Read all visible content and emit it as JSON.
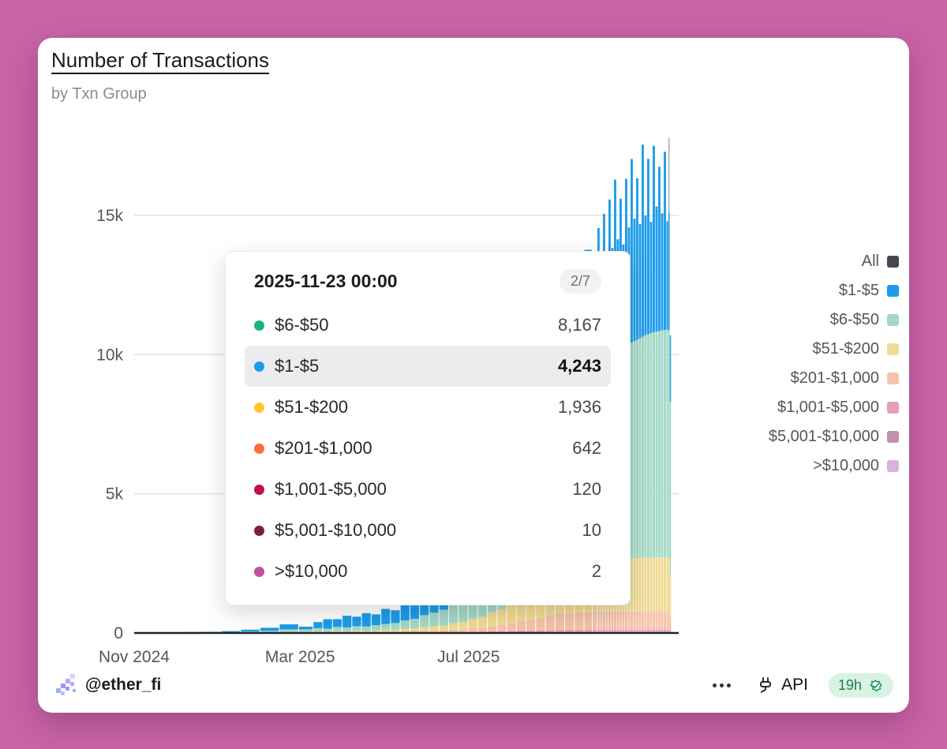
{
  "card": {
    "title": "Number of Transactions",
    "subtitle": "by Txn Group"
  },
  "tooltip": {
    "date": "2025-11-23 00:00",
    "pager": "2/7",
    "highlight_index": 1,
    "rows": [
      {
        "label": "$6-$50",
        "value": "8,167",
        "color": "#17b387"
      },
      {
        "label": "$1-$5",
        "value": "4,243",
        "color": "#1c9ceb"
      },
      {
        "label": "$51-$200",
        "value": "1,936",
        "color": "#ffc233"
      },
      {
        "label": "$201-$1,000",
        "value": "642",
        "color": "#ff6b3b"
      },
      {
        "label": "$1,001-$5,000",
        "value": "120",
        "color": "#c30e52"
      },
      {
        "label": "$5,001-$10,000",
        "value": "10",
        "color": "#7a1e40"
      },
      {
        "label": ">$10,000",
        "value": "2",
        "color": "#bf4fa4"
      }
    ]
  },
  "legend": {
    "items": [
      {
        "label": "All",
        "color": "#46464e"
      },
      {
        "label": "$1-$5",
        "color": "#1c9ceb"
      },
      {
        "label": "$6-$50",
        "color": "#a3d9c6"
      },
      {
        "label": "$51-$200",
        "color": "#f0db92"
      },
      {
        "label": "$201-$1,000",
        "color": "#f6c2a9"
      },
      {
        "label": "$1,001-$5,000",
        "color": "#e79fb4"
      },
      {
        "label": "$5,001-$10,000",
        "color": "#c48fac"
      },
      {
        "label": ">$10,000",
        "color": "#d8b2dc"
      }
    ]
  },
  "footer": {
    "handle": "@ether_fi",
    "api_label": "API",
    "refresh": "19h"
  },
  "chart_data": {
    "type": "bar",
    "stacked": true,
    "title": "Number of Transactions by Txn Group",
    "xlabel": "",
    "ylabel": "",
    "grid": true,
    "legend_position": "right",
    "x_range": [
      "2024-11-01",
      "2025-11-30"
    ],
    "ylim": [
      0,
      17800
    ],
    "y_ticks": [
      {
        "v": 0,
        "label": "0"
      },
      {
        "v": 5000,
        "label": "5k"
      },
      {
        "v": 10000,
        "label": "10k"
      },
      {
        "v": 15000,
        "label": "15k"
      }
    ],
    "x_ticks": [
      {
        "d": "2024-11-01",
        "label": "Nov 2024"
      },
      {
        "d": "2025-03-01",
        "label": "Mar 2025"
      },
      {
        "d": "2025-07-01",
        "label": "Jul 2025"
      }
    ],
    "hover_date": "2025-11-23",
    "dates": [
      "2024-11-01",
      "2024-11-15",
      "2024-11-29",
      "2024-12-13",
      "2024-12-27",
      "2025-01-10",
      "2025-01-24",
      "2025-02-07",
      "2025-02-21",
      "2025-03-07",
      "2025-03-14",
      "2025-03-21",
      "2025-03-28",
      "2025-04-04",
      "2025-04-11",
      "2025-04-18",
      "2025-04-25",
      "2025-05-02",
      "2025-05-09",
      "2025-05-16",
      "2025-05-23",
      "2025-05-30",
      "2025-06-06",
      "2025-06-13",
      "2025-06-20",
      "2025-06-27",
      "2025-07-04",
      "2025-07-11",
      "2025-07-18",
      "2025-07-25",
      "2025-08-01",
      "2025-08-08",
      "2025-08-15",
      "2025-08-22",
      "2025-08-29",
      "2025-09-05",
      "2025-09-12",
      "2025-09-19",
      "2025-09-26",
      "2025-10-01",
      "2025-10-03",
      "2025-10-05",
      "2025-10-07",
      "2025-10-09",
      "2025-10-11",
      "2025-10-13",
      "2025-10-15",
      "2025-10-17",
      "2025-10-19",
      "2025-10-21",
      "2025-10-23",
      "2025-10-25",
      "2025-10-27",
      "2025-10-29",
      "2025-10-31",
      "2025-11-02",
      "2025-11-04",
      "2025-11-06",
      "2025-11-08",
      "2025-11-10",
      "2025-11-12",
      "2025-11-14",
      "2025-11-16",
      "2025-11-18",
      "2025-11-20",
      "2025-11-22",
      "2025-11-23",
      "2025-11-24"
    ],
    "series": [
      {
        "name": "$1-$5",
        "color": "#1c9ceb",
        "values": [
          5,
          10,
          15,
          20,
          25,
          40,
          70,
          110,
          180,
          100,
          220,
          340,
          280,
          420,
          340,
          480,
          390,
          540,
          460,
          600,
          560,
          680,
          780,
          900,
          1000,
          960,
          1080,
          1250,
          1400,
          1350,
          1500,
          1750,
          1700,
          1950,
          2200,
          2500,
          2450,
          3300,
          4200,
          3200,
          4800,
          3400,
          5200,
          3600,
          5600,
          3800,
          6200,
          4000,
          5400,
          3700,
          6000,
          4200,
          6600,
          4400,
          5800,
          4100,
          6900,
          4300,
          6300,
          4000,
          6700,
          4500,
          5900,
          4200,
          6400,
          3900,
          4243,
          2400
        ]
      },
      {
        "name": "$6-$50",
        "color": "#a3d9c6",
        "values": [
          3,
          6,
          8,
          10,
          12,
          20,
          35,
          55,
          90,
          90,
          120,
          110,
          150,
          140,
          170,
          160,
          190,
          220,
          240,
          300,
          340,
          430,
          490,
          560,
          730,
          830,
          1080,
          1230,
          1600,
          1820,
          2350,
          2670,
          3030,
          3440,
          4420,
          5670,
          6100,
          6800,
          7000,
          7100,
          7150,
          7200,
          7250,
          7300,
          7350,
          7400,
          7450,
          7500,
          7550,
          7600,
          7650,
          7700,
          7750,
          7800,
          7850,
          7900,
          7950,
          8000,
          8030,
          8060,
          8090,
          8110,
          8130,
          8150,
          8160,
          8165,
          8167,
          6200
        ]
      },
      {
        "name": "$51-$200",
        "color": "#f0db92",
        "values": [
          0,
          1,
          2,
          3,
          4,
          6,
          10,
          16,
          28,
          25,
          35,
          30,
          45,
          40,
          50,
          48,
          58,
          70,
          78,
          98,
          110,
          140,
          158,
          180,
          234,
          266,
          340,
          390,
          500,
          570,
          730,
          830,
          940,
          1060,
          1350,
          1550,
          1650,
          1780,
          1820,
          1840,
          1845,
          1850,
          1855,
          1860,
          1865,
          1870,
          1875,
          1880,
          1885,
          1890,
          1895,
          1900,
          1905,
          1908,
          1910,
          1913,
          1915,
          1918,
          1920,
          1923,
          1925,
          1928,
          1930,
          1933,
          1935,
          1936,
          1936,
          1500
        ]
      },
      {
        "name": "$201-$1,000",
        "color": "#f6c2a9",
        "values": [
          0,
          0,
          0,
          1,
          1,
          2,
          4,
          6,
          10,
          10,
          14,
          12,
          18,
          16,
          20,
          19,
          24,
          28,
          31,
          39,
          44,
          56,
          63,
          72,
          92,
          105,
          135,
          153,
          197,
          224,
          288,
          327,
          371,
          420,
          540,
          590,
          600,
          615,
          620,
          622,
          624,
          625,
          627,
          628,
          630,
          631,
          633,
          634,
          636,
          637,
          639,
          640,
          641,
          642,
          644,
          645,
          646,
          648,
          649,
          650,
          651,
          652,
          653,
          654,
          655,
          656,
          642,
          500
        ]
      },
      {
        "name": "$1,001-$5,000",
        "color": "#e79fb4",
        "values": [
          0,
          0,
          0,
          0,
          0,
          0,
          1,
          1,
          2,
          2,
          3,
          3,
          4,
          4,
          5,
          5,
          6,
          7,
          8,
          10,
          11,
          14,
          16,
          18,
          23,
          26,
          34,
          38,
          49,
          55,
          70,
          79,
          85,
          90,
          95,
          100,
          105,
          110,
          114,
          115,
          115,
          116,
          116,
          117,
          117,
          118,
          118,
          119,
          119,
          120,
          120,
          120,
          120,
          121,
          121,
          121,
          122,
          122,
          122,
          123,
          123,
          123,
          124,
          124,
          124,
          125,
          120,
          90
        ]
      },
      {
        "name": "$5,001-$10,000",
        "color": "#c48fac",
        "values": [
          0,
          0,
          0,
          0,
          0,
          0,
          0,
          0,
          0,
          0,
          0,
          0,
          0,
          0,
          0,
          0,
          0,
          0,
          0,
          1,
          1,
          1,
          1,
          1,
          2,
          2,
          3,
          3,
          4,
          4,
          5,
          6,
          6,
          7,
          8,
          9,
          9,
          10,
          10,
          10,
          10,
          10,
          10,
          10,
          10,
          10,
          10,
          10,
          10,
          10,
          10,
          10,
          10,
          10,
          10,
          10,
          10,
          10,
          10,
          10,
          10,
          10,
          10,
          10,
          10,
          10,
          10,
          8
        ]
      },
      {
        "name": ">$10,000",
        "color": "#d8b2dc",
        "values": [
          0,
          0,
          0,
          0,
          0,
          0,
          0,
          0,
          0,
          0,
          0,
          0,
          0,
          0,
          0,
          0,
          0,
          0,
          0,
          0,
          0,
          0,
          0,
          0,
          0,
          0,
          0,
          0,
          0,
          0,
          0,
          0,
          1,
          1,
          1,
          1,
          1,
          1,
          1,
          1,
          1,
          1,
          1,
          1,
          1,
          1,
          2,
          2,
          2,
          2,
          2,
          2,
          2,
          2,
          2,
          2,
          2,
          2,
          2,
          2,
          2,
          2,
          2,
          2,
          2,
          2,
          2,
          2
        ]
      }
    ]
  }
}
